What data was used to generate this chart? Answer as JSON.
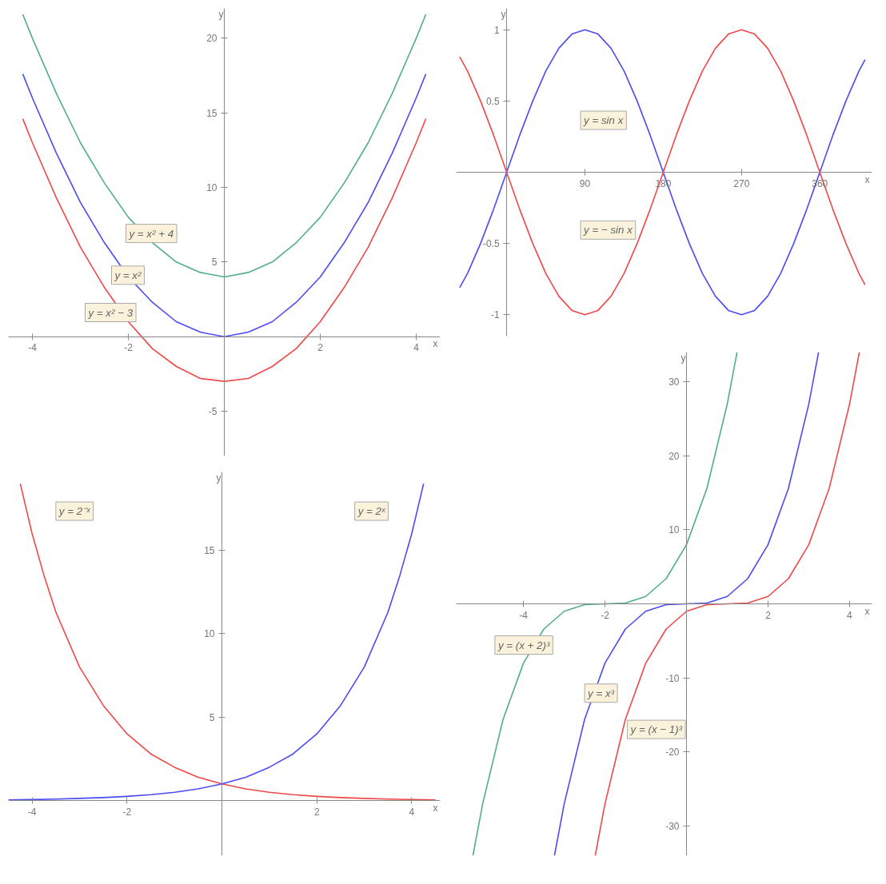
{
  "chart_data": [
    {
      "type": "line",
      "xlabel": "x",
      "ylabel": "y",
      "xlim": [
        -4.5,
        4.5
      ],
      "ylim": [
        -8,
        22
      ],
      "xticks": [
        -4,
        -2,
        2,
        4
      ],
      "yticks": [
        -5,
        5,
        10,
        15,
        20
      ],
      "grid": false,
      "x": [
        -4.2,
        -4,
        -3.5,
        -3,
        -2.5,
        -2,
        -1.5,
        -1,
        -0.5,
        0,
        0.5,
        1,
        1.5,
        2,
        2.5,
        3,
        3.5,
        4,
        4.2
      ],
      "series": [
        {
          "name": "y = x² + 4",
          "color": "#52ad8b",
          "values": [
            21.6,
            20,
            16.3,
            13,
            10.3,
            8,
            6.3,
            5,
            4.3,
            4,
            4.3,
            5,
            6.3,
            8,
            10.3,
            13,
            16.3,
            20,
            21.6
          ]
        },
        {
          "name": "y = x²",
          "color": "#4b4bf5",
          "values": [
            17.6,
            16,
            12.3,
            9,
            6.3,
            4,
            2.3,
            1,
            0.3,
            0,
            0.3,
            1,
            2.3,
            4,
            6.3,
            9,
            12.3,
            16,
            17.6
          ]
        },
        {
          "name": "y = x² − 3",
          "color": "#f04848",
          "values": [
            14.6,
            13,
            9.3,
            6,
            3.3,
            1,
            -0.8,
            -2,
            -2.8,
            -3,
            -2.8,
            -2,
            -0.8,
            1,
            3.3,
            6,
            9.3,
            13,
            14.6
          ]
        }
      ]
    },
    {
      "type": "line",
      "xlabel": "x",
      "ylabel": "y",
      "xlim": [
        -58,
        420
      ],
      "ylim": [
        -1.15,
        1.15
      ],
      "xticks": [
        90,
        180,
        270,
        360
      ],
      "yticks": [
        -1,
        -0.5,
        0.5,
        1
      ],
      "grid": false,
      "x": [
        -54,
        -45,
        -30,
        -15,
        0,
        15,
        30,
        45,
        60,
        75,
        90,
        105,
        120,
        135,
        150,
        165,
        180,
        195,
        210,
        225,
        240,
        255,
        270,
        285,
        300,
        315,
        330,
        345,
        360,
        375,
        390,
        405,
        412
      ],
      "series": [
        {
          "name": "y = sin x",
          "color": "#4b4bf5",
          "values": [
            -0.81,
            -0.71,
            -0.5,
            -0.26,
            0,
            0.26,
            0.5,
            0.71,
            0.87,
            0.97,
            1,
            0.97,
            0.87,
            0.71,
            0.5,
            0.26,
            0,
            -0.26,
            -0.5,
            -0.71,
            -0.87,
            -0.97,
            -1,
            -0.97,
            -0.87,
            -0.71,
            -0.5,
            -0.26,
            0,
            0.26,
            0.5,
            0.71,
            0.79
          ]
        },
        {
          "name": "y = − sin x",
          "color": "#f04848",
          "values": [
            0.81,
            0.71,
            0.5,
            0.26,
            0,
            -0.26,
            -0.5,
            -0.71,
            -0.87,
            -0.97,
            -1,
            -0.97,
            -0.87,
            -0.71,
            -0.5,
            -0.26,
            0,
            0.26,
            0.5,
            0.71,
            0.87,
            0.97,
            1,
            0.97,
            0.87,
            0.71,
            0.5,
            0.26,
            0,
            -0.26,
            -0.5,
            -0.71,
            -0.79
          ]
        }
      ]
    },
    {
      "type": "line",
      "xlabel": "x",
      "ylabel": "y",
      "xlim": [
        -4.5,
        4.6
      ],
      "ylim": [
        -3.3,
        19.7
      ],
      "xticks": [
        -4,
        -2,
        2,
        4
      ],
      "yticks": [
        5,
        10,
        15
      ],
      "grid": false,
      "series": [
        {
          "name": "y = 2⁻ˣ",
          "color": "#f04848",
          "x": [
            -4.25,
            -4,
            -3.75,
            -3.5,
            -3,
            -2.5,
            -2,
            -1.5,
            -1,
            -0.5,
            0,
            0.5,
            1,
            1.5,
            2,
            2.5,
            3,
            3.5,
            4,
            4.5
          ],
          "values": [
            19.0,
            16,
            13.5,
            11.3,
            8,
            5.7,
            4,
            2.8,
            2,
            1.4,
            1,
            0.7,
            0.5,
            0.35,
            0.25,
            0.18,
            0.13,
            0.09,
            0.06,
            0.04
          ]
        },
        {
          "name": "y = 2ˣ",
          "color": "#4b4bf5",
          "x": [
            -4.5,
            -4,
            -3.5,
            -3,
            -2.5,
            -2,
            -1.5,
            -1,
            -0.5,
            0,
            0.5,
            1,
            1.5,
            2,
            2.5,
            3,
            3.5,
            3.75,
            4,
            4.25
          ],
          "values": [
            0.04,
            0.06,
            0.09,
            0.13,
            0.18,
            0.25,
            0.35,
            0.5,
            0.7,
            1,
            1.4,
            2,
            2.8,
            4,
            5.7,
            8,
            11.3,
            13.5,
            16,
            19.0
          ]
        }
      ]
    },
    {
      "type": "line",
      "xlabel": "x",
      "ylabel": "y",
      "xlim": [
        -5.65,
        4.55
      ],
      "ylim": [
        -34,
        34
      ],
      "xticks": [
        -4,
        -2,
        2,
        4
      ],
      "yticks": [
        -30,
        -20,
        -10,
        10,
        20,
        30
      ],
      "grid": false,
      "series": [
        {
          "name": "y = (x + 2)³",
          "color": "#52ad8b",
          "x": [
            -5.24,
            -5,
            -4.5,
            -4,
            -3.5,
            -3,
            -2.5,
            -2,
            -1.5,
            -1,
            -0.5,
            0,
            0.5,
            1,
            1.24
          ],
          "values": [
            -34,
            -27,
            -15.6,
            -8,
            -3.4,
            -1,
            -0.1,
            0,
            0.1,
            1,
            3.4,
            8,
            15.6,
            27,
            34
          ]
        },
        {
          "name": "y = x³",
          "color": "#4b4bf5",
          "x": [
            -3.24,
            -3,
            -2.5,
            -2,
            -1.5,
            -1,
            -0.5,
            0,
            0.5,
            1,
            1.5,
            2,
            2.5,
            3,
            3.24
          ],
          "values": [
            -34,
            -27,
            -15.6,
            -8,
            -3.4,
            -1,
            -0.1,
            0,
            0.1,
            1,
            3.4,
            8,
            15.6,
            27,
            34
          ]
        },
        {
          "name": "y = (x − 1)³",
          "color": "#f04848",
          "x": [
            -2.24,
            -2,
            -1.5,
            -1,
            -0.5,
            0,
            0.5,
            1,
            1.5,
            2,
            2.5,
            3,
            3.5,
            4,
            4.24
          ],
          "values": [
            -34,
            -27,
            -15.6,
            -8,
            -3.4,
            -1,
            -0.1,
            0,
            0.1,
            1,
            3.4,
            8,
            15.6,
            27,
            34
          ]
        }
      ]
    }
  ]
}
